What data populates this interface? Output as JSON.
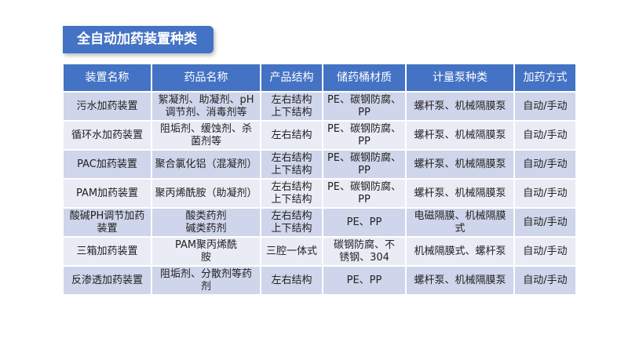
{
  "title": "全自动加药装置种类",
  "headers": [
    "装置名称",
    "药品名称",
    "产品结构",
    "储药桶材质",
    "计量泵种类",
    "加药方式"
  ],
  "rows": [
    [
      "污水加药装置",
      "絮凝剂、助凝剂、pH\n调节剂、消毒剂等",
      "左右结构\n上下结构",
      "PE、碳钢防腐、\nPP",
      "螺杆泵、机械隔膜泵",
      "自动/手动"
    ],
    [
      "循环水加药装置",
      "阻垢剂、缓蚀剂、杀\n菌剂等",
      "左右结构",
      "PE、碳钢防腐、\nPP",
      "螺杆泵、机械隔膜泵",
      "自动/手动"
    ],
    [
      "PAC加药装置",
      "聚合氯化铝（混凝剂）",
      "左右结构\n上下结构",
      "PE、碳钢防腐、\nPP",
      "螺杆泵、机械隔膜泵",
      "自动/手动"
    ],
    [
      "PAM加药装置",
      "聚丙烯酰胺（助凝剂）",
      "左右结构\n上下结构",
      "PE、碳钢防腐、\nPP",
      "螺杆泵、机械隔膜泵",
      "自动/手动"
    ],
    [
      "酸碱PH调节加药\n装置",
      "酸类药剂\n碱类药剂",
      "左右结构\n上下结构",
      "PE、PP",
      "电磁隔膜、机械隔膜\n式",
      "自动/手动"
    ],
    [
      "三箱加药装置",
      "PAM聚丙烯酰\n胺",
      "三腔一体式",
      "碳钢防腐、不\n锈钢、304",
      "机械隔膜式、螺杆泵",
      "自动/手动"
    ],
    [
      "反渗透加药装置",
      "阻垢剂、分散剂等药\n剂",
      "左右结构",
      "PE、PP",
      "螺杆泵、机械隔膜泵",
      "自动/手动"
    ]
  ],
  "colors": {
    "header": "#4472c4",
    "row_odd": "#cfd5ea",
    "row_even": "#e9ebf5"
  }
}
